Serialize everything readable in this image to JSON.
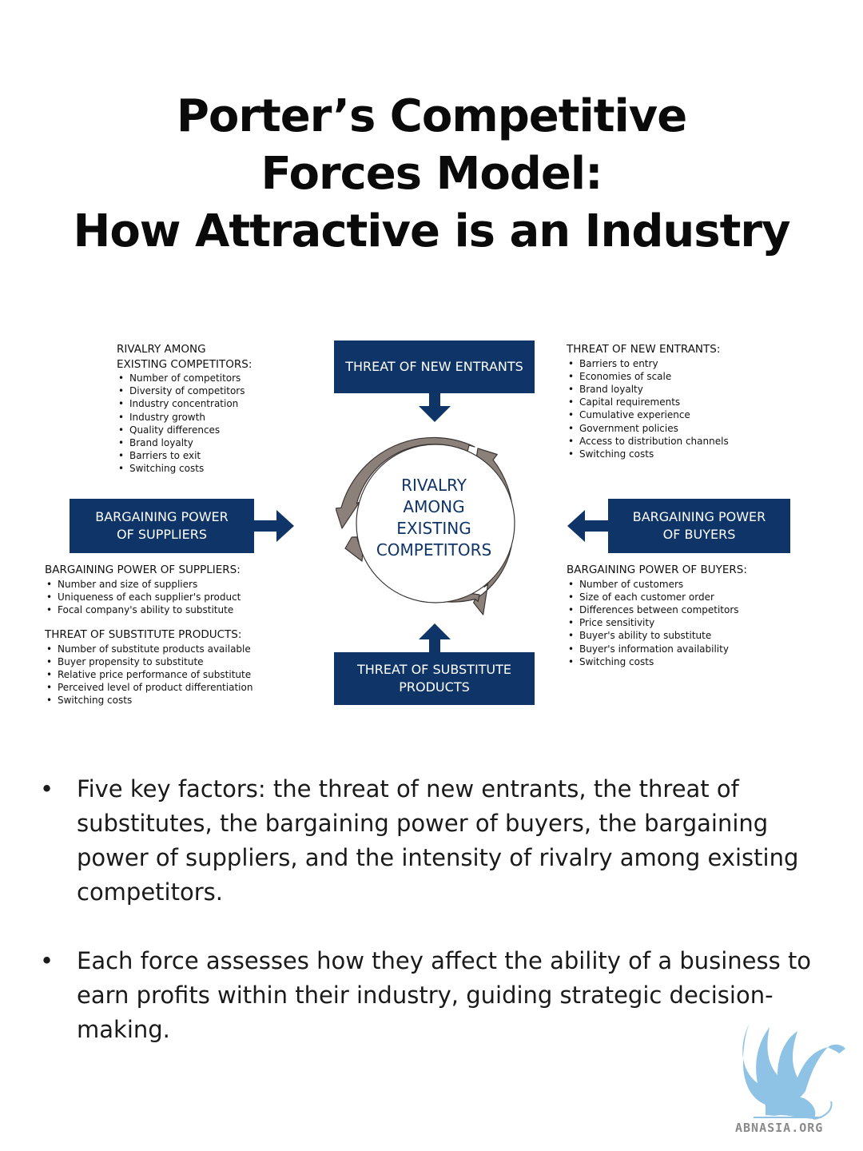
{
  "title": {
    "line1": "Porter’s Competitive",
    "line2": "Forces Model:",
    "line3": "How Attractive is an Industry"
  },
  "diagram": {
    "center": [
      "RIVALRY",
      "AMONG",
      "EXISTING",
      "COMPETITORS"
    ],
    "forces": {
      "new_entrants": [
        "THREAT OF NEW ENTRANTS"
      ],
      "suppliers": [
        "BARGAINING POWER",
        "OF SUPPLIERS"
      ],
      "buyers": [
        "BARGAINING POWER",
        "OF BUYERS"
      ],
      "substitutes": [
        "THREAT OF SUBSTITUTE",
        "PRODUCTS"
      ]
    },
    "colors": {
      "box": "#0f3568",
      "cycle_arrow": "#8c807b"
    },
    "lists": {
      "rivalry": {
        "heading": [
          "RIVALRY AMONG",
          "EXISTING COMPETITORS:"
        ],
        "items": [
          "Number of competitors",
          "Diversity of competitors",
          "Industry concentration",
          "Industry growth",
          "Quality differences",
          "Brand loyalty",
          "Barriers to exit",
          "Switching costs"
        ]
      },
      "new_entrants": {
        "heading": [
          "THREAT OF NEW ENTRANTS:"
        ],
        "items": [
          "Barriers to entry",
          "Economies of scale",
          "Brand loyalty",
          "Capital requirements",
          "Cumulative experience",
          "Government policies",
          "Access to distribution channels",
          "Switching costs"
        ]
      },
      "suppliers": {
        "heading": [
          "BARGAINING POWER OF SUPPLIERS:"
        ],
        "items": [
          "Number and size of suppliers",
          "Uniqueness of each supplier's product",
          "Focal company's ability to substitute"
        ]
      },
      "substitutes": {
        "heading": [
          "THREAT OF SUBSTITUTE PRODUCTS:"
        ],
        "items": [
          "Number of substitute products available",
          "Buyer propensity to substitute",
          "Relative price performance of substitute",
          "Perceived level of product differentiation",
          "Switching costs"
        ]
      },
      "buyers": {
        "heading": [
          "BARGAINING POWER OF BUYERS:"
        ],
        "items": [
          "Number of customers",
          "Size of each customer order",
          "Differences between competitors",
          "Price sensitivity",
          "Buyer's ability to substitute",
          "Buyer's information availability",
          "Switching costs"
        ]
      }
    }
  },
  "bullets": [
    "Five key factors: the threat of new entrants, the threat of substitutes, the bargaining power of buyers, the bargaining power of suppliers, and the intensity of rivalry among existing competitors.",
    "Each force assesses how they affect the ability of a business to earn profits within their industry, guiding strategic decision-making."
  ],
  "logo": {
    "text": "ABNASIA.ORG",
    "icon": "griffin-logo-icon"
  }
}
